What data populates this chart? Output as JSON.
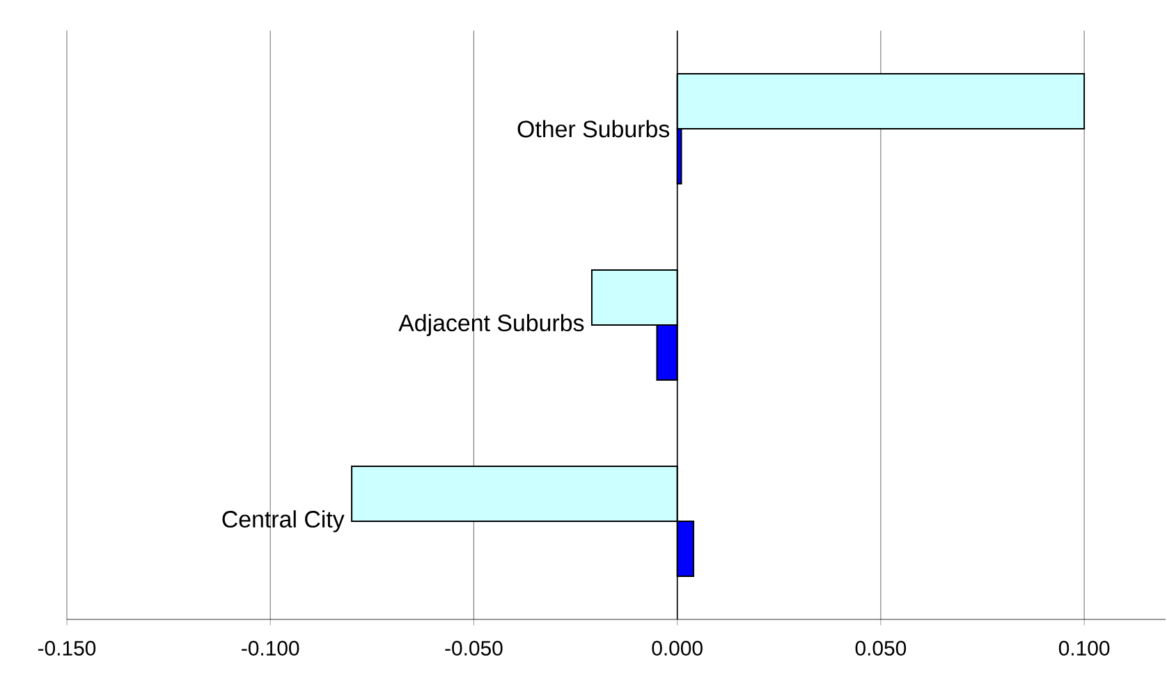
{
  "chart_data": {
    "type": "bar",
    "orientation": "horizontal",
    "categories": [
      "Other Suburbs",
      "Adjacent Suburbs",
      "Central City"
    ],
    "series": [
      {
        "color": "#ccffff",
        "values": [
          0.1,
          -0.021,
          -0.08
        ]
      },
      {
        "color": "#0000ff",
        "values": [
          0.001,
          -0.005,
          0.004
        ]
      }
    ],
    "xlim": [
      -0.15,
      0.12
    ],
    "xticks": [
      {
        "value": -0.15,
        "label": "-0.150"
      },
      {
        "value": -0.1,
        "label": "-0.100"
      },
      {
        "value": -0.05,
        "label": "-0.050"
      },
      {
        "value": 0,
        "label": "0.000"
      },
      {
        "value": 0.05,
        "label": "0.050"
      },
      {
        "value": 0.1,
        "label": "0.100"
      }
    ],
    "grid": "x"
  }
}
